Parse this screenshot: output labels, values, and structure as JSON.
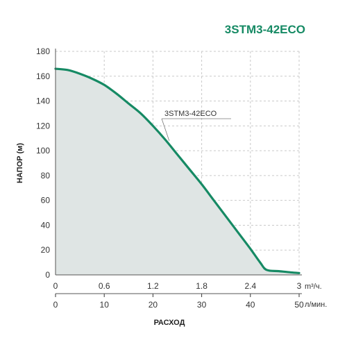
{
  "chart_data": {
    "type": "area",
    "title": "3STM3-42ECO",
    "ylabel": "НАПОР (м)",
    "xlabel": "РАСХОД",
    "x_primary": {
      "unit": "m³/ч.",
      "ticks": [
        "0",
        "0.6",
        "1.2",
        "1.8",
        "2.4",
        "3"
      ],
      "range": [
        0,
        3
      ]
    },
    "x_secondary": {
      "unit": "л/мин.",
      "ticks": [
        "0",
        "10",
        "20",
        "30",
        "40",
        "50"
      ],
      "range": [
        0,
        50
      ]
    },
    "y_ticks": [
      "0",
      "20",
      "40",
      "60",
      "80",
      "100",
      "120",
      "140",
      "160",
      "180"
    ],
    "ylim": [
      0,
      180
    ],
    "grid": true,
    "series": [
      {
        "name": "3STM3-42ECO",
        "x": [
          0,
          0.15,
          0.3,
          0.45,
          0.6,
          0.75,
          0.9,
          1.05,
          1.2,
          1.35,
          1.5,
          1.65,
          1.8,
          1.95,
          2.1,
          2.25,
          2.4,
          2.52,
          2.6,
          2.75,
          2.9,
          3.0
        ],
        "y": [
          166,
          165,
          162,
          158,
          153,
          146,
          138,
          130,
          120,
          109,
          97,
          85,
          73,
          60,
          47,
          34,
          21,
          10,
          4,
          3,
          2,
          1.5
        ]
      }
    ],
    "colors": {
      "curve": "#168a64",
      "fill": "#dfe5e4",
      "grid": "#c9c9c9",
      "title": "#168a64"
    }
  }
}
